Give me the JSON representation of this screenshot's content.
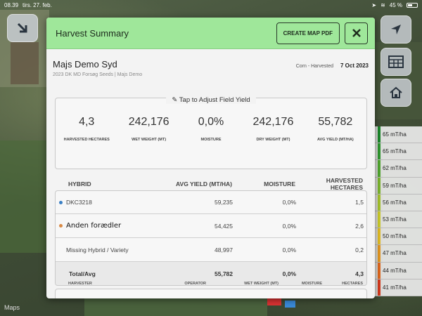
{
  "status_bar": {
    "time": "08.39",
    "date": "tirs. 27. feb.",
    "battery": "45 %"
  },
  "map": {
    "attribution": "Maps"
  },
  "legend": [
    {
      "label": "65 mT/ha",
      "color": "#1a8a2a"
    },
    {
      "label": "65 mT/ha",
      "color": "#2e9a2e"
    },
    {
      "label": "62 mT/ha",
      "color": "#52aa30"
    },
    {
      "label": "59 mT/ha",
      "color": "#7fb92e"
    },
    {
      "label": "56 mT/ha",
      "color": "#a8c62c"
    },
    {
      "label": "53 mT/ha",
      "color": "#cfcf2a"
    },
    {
      "label": "50 mT/ha",
      "color": "#e6c024"
    },
    {
      "label": "47 mT/ha",
      "color": "#e89a20"
    },
    {
      "label": "44 mT/ha",
      "color": "#e46a1e"
    },
    {
      "label": "41 mT/ha",
      "color": "#d83a1c"
    }
  ],
  "modal": {
    "title": "Harvest Summary",
    "pdf_button": "CREATE MAP PDF",
    "field_name": "Majs Demo Syd",
    "field_sub": "2023 DK MD Forsøg Seeds | Majs Demo",
    "crop_status": "Corn - Harvested",
    "date": "7 Oct 2023",
    "adjust_label": "Tap to Adjust Field Yield",
    "stats": [
      {
        "value": "4,3",
        "label": "HARVESTED HECTARES"
      },
      {
        "value": "242,176",
        "label": "WET WEIGHT (MT)"
      },
      {
        "value": "0,0%",
        "label": "MOISTURE"
      },
      {
        "value": "242,176",
        "label": "DRY WEIGHT (MT)"
      },
      {
        "value": "55,782",
        "label": "AVG YIELD (MT/HA)"
      }
    ],
    "hybrid_headers": [
      "HYBRID",
      "AVG YIELD (MT/HA)",
      "MOISTURE",
      "HARVESTED HECTARES"
    ],
    "hybrids": [
      {
        "name": "DKC3218",
        "yield": "59,235",
        "moisture": "0,0%",
        "hectares": "1,5",
        "color": "#3a7fc4"
      },
      {
        "name": "Anden forædler",
        "yield": "54,425",
        "moisture": "0,0%",
        "hectares": "2,6",
        "color": "#d98a45"
      },
      {
        "name": "Missing Hybrid / Variety",
        "yield": "48,997",
        "moisture": "0,0%",
        "hectares": "0,2",
        "color": ""
      }
    ],
    "total": {
      "name": "Total/Avg",
      "yield": "55,782",
      "moisture": "0,0%",
      "hectares": "4,3"
    },
    "harvester_headers": [
      "HARVESTER",
      "OPERATOR",
      "WET WEIGHT (MT)",
      "MOISTURE",
      "HECTARES"
    ]
  }
}
